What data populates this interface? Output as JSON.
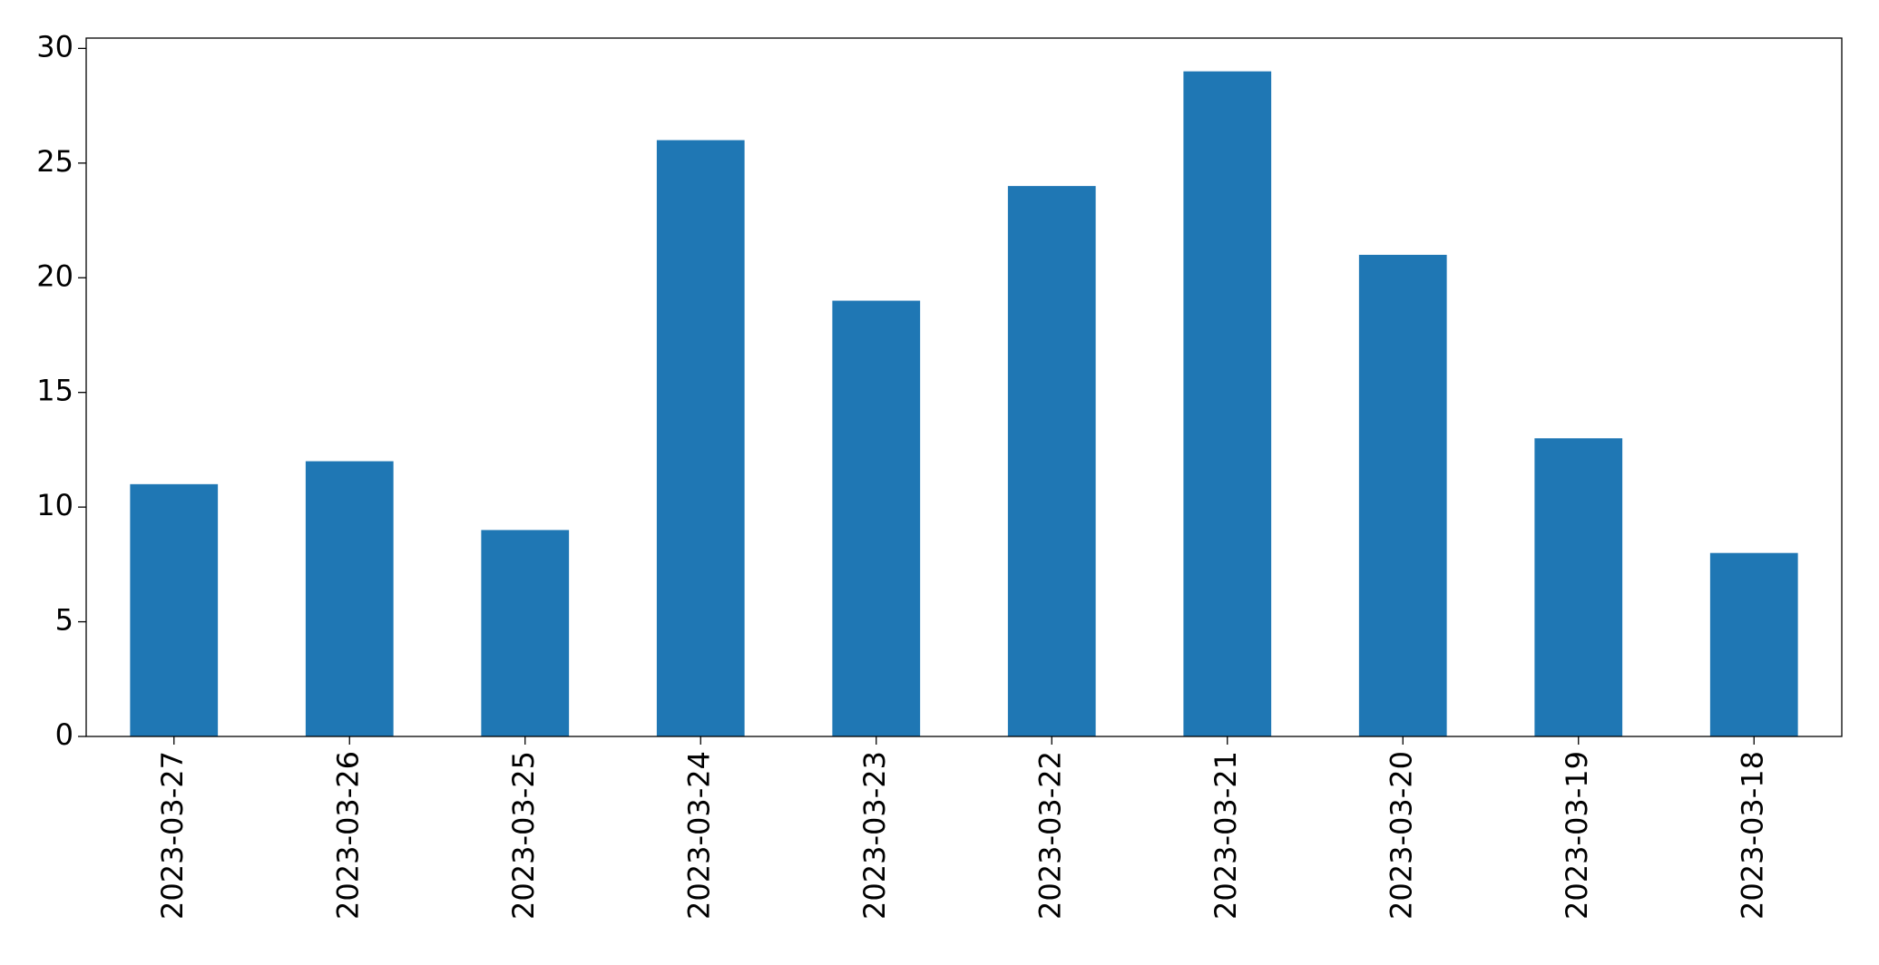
{
  "chart_data": {
    "type": "bar",
    "categories": [
      "2023-03-27",
      "2023-03-26",
      "2023-03-25",
      "2023-03-24",
      "2023-03-23",
      "2023-03-22",
      "2023-03-21",
      "2023-03-20",
      "2023-03-19",
      "2023-03-18"
    ],
    "values": [
      11,
      12,
      9,
      26,
      19,
      24,
      29,
      21,
      13,
      8
    ],
    "color": "#1f77b4",
    "ylim": [
      0,
      30.45
    ],
    "yticks": [
      0,
      5,
      10,
      15,
      20,
      25,
      30
    ],
    "grid": false
  }
}
